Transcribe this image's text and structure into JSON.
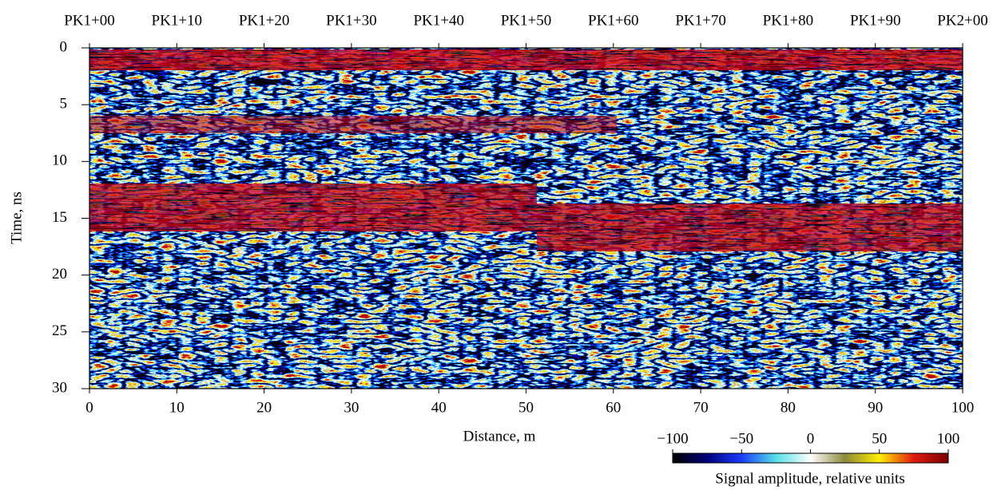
{
  "chart_data": {
    "type": "radargram",
    "xlabel": "Distance, m",
    "ylabel": "Time, ns",
    "xlim": [
      0,
      100
    ],
    "xticks": [
      0,
      10,
      20,
      30,
      40,
      50,
      60,
      70,
      80,
      90,
      100
    ],
    "ylim": [
      30,
      0
    ],
    "yticks": [
      0,
      5,
      10,
      15,
      20,
      25,
      30
    ],
    "x2ticks": [
      {
        "value": 0,
        "label": "PK1+00"
      },
      {
        "value": 10,
        "label": "PK1+10"
      },
      {
        "value": 20,
        "label": "PK1+20"
      },
      {
        "value": 30,
        "label": "PK1+30"
      },
      {
        "value": 40,
        "label": "PK1+40"
      },
      {
        "value": 50,
        "label": "PK1+50"
      },
      {
        "value": 60,
        "label": "PK1+60"
      },
      {
        "value": 70,
        "label": "PK1+70"
      },
      {
        "value": 80,
        "label": "PK1+80"
      },
      {
        "value": 90,
        "label": "PK1+90"
      },
      {
        "value": 100,
        "label": "PK2+00"
      }
    ],
    "colorbar": {
      "label": "Signal amplitude, relative units",
      "lim": [
        -100,
        100
      ],
      "ticks": [
        {
          "value": -100,
          "label": "−100"
        },
        {
          "value": -50,
          "label": "−50"
        },
        0,
        50,
        100
      ],
      "colors": [
        "#000000",
        "#00007a",
        "#1a3cff",
        "#55e0e6",
        "#ffffff",
        "#8c8a3a",
        "#ffee00",
        "#e01a10",
        "#7a0000"
      ]
    }
  }
}
